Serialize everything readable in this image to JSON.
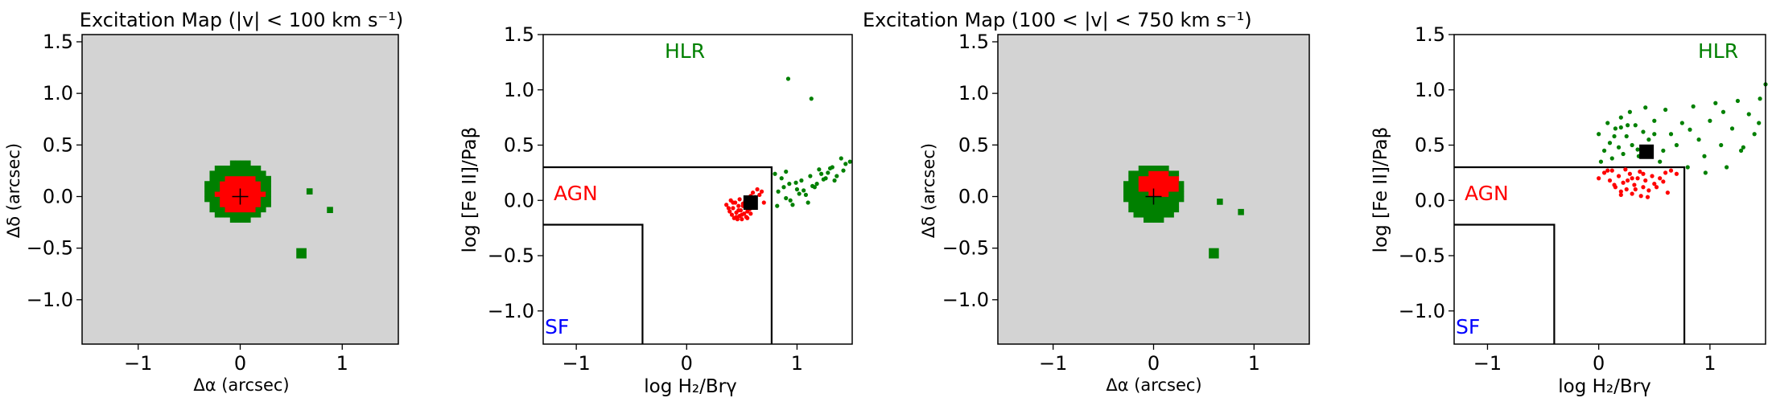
{
  "figure": {
    "panels": [
      {
        "id": "map1",
        "title": "Excitation Map (|v| < 100 km s⁻¹)",
        "xlabel": "Δα (arcsec)",
        "ylabel": "Δδ (arcsec)"
      },
      {
        "id": "diag1",
        "xlabel": "log H₂/Brγ",
        "ylabel": "log [Fe II]/Paβ",
        "regions": {
          "hlr": "HLR",
          "agn": "AGN",
          "sf": "SF"
        }
      },
      {
        "id": "map2",
        "title": "Excitation Map (100 < |v| < 750 km s⁻¹)",
        "xlabel": "Δα (arcsec)",
        "ylabel": "Δδ (arcsec)"
      },
      {
        "id": "diag2",
        "xlabel": "log H₂/Brγ",
        "ylabel": "log [Fe II]/Paβ",
        "regions": {
          "hlr": "HLR",
          "agn": "AGN",
          "sf": "SF"
        }
      }
    ]
  },
  "colors": {
    "map_background": "#d3d3d3",
    "hlr": "#008000",
    "agn": "#ff0000",
    "sf": "#0000ff",
    "marker": "#000000"
  },
  "chart_data": [
    {
      "type": "heatmap",
      "title": "Excitation Map (|v| < 100 km s⁻¹)",
      "xlabel": "Δα (arcsec)",
      "ylabel": "Δδ (arcsec)",
      "xlim": [
        -1.55,
        1.55
      ],
      "ylim": [
        -1.43,
        1.57
      ],
      "xticks": [
        -1,
        0,
        1
      ],
      "yticks": [
        -1.0,
        -0.5,
        0.0,
        0.5,
        1.0,
        1.5
      ],
      "categories": [
        "HLR",
        "AGN"
      ],
      "regions": {
        "HLR_core": {
          "center": [
            -0.02,
            0.05
          ],
          "radius_x": 0.33,
          "radius_y": 0.29
        },
        "AGN_core": {
          "center": [
            0.0,
            0.02
          ],
          "radius_x": 0.23,
          "radius_y": 0.19
        },
        "HLR_islands": [
          [
            0.68,
            0.05
          ],
          [
            0.88,
            -0.13
          ],
          [
            0.6,
            -0.55
          ]
        ]
      },
      "center_marker": [
        0,
        0
      ]
    },
    {
      "type": "scatter",
      "xlabel": "log H₂/Brγ",
      "ylabel": "log [Fe II]/Paβ",
      "xlim": [
        -1.3,
        1.5
      ],
      "ylim": [
        -1.3,
        1.5
      ],
      "xticks": [
        -1,
        0,
        1
      ],
      "yticks": [
        -1.0,
        -0.5,
        0.0,
        0.5,
        1.0,
        1.5
      ],
      "boundaries": {
        "agn_box": {
          "x_max": 0.77,
          "y_min": 0.3
        },
        "sf_box": {
          "x_max": -0.4,
          "y_max": -0.22
        }
      },
      "series": [
        {
          "name": "AGN",
          "x": [
            0.36,
            0.39,
            0.4,
            0.41,
            0.42,
            0.43,
            0.44,
            0.45,
            0.46,
            0.47,
            0.48,
            0.49,
            0.5,
            0.51,
            0.52,
            0.53,
            0.54,
            0.55,
            0.56,
            0.57,
            0.58,
            0.6,
            0.62,
            0.64,
            0.66,
            0.68,
            0.7,
            0.45,
            0.5,
            0.55,
            0.38,
            0.42,
            0.48,
            0.53,
            0.58,
            0.61,
            0.47,
            0.51
          ],
          "y": [
            -0.04,
            -0.1,
            0.0,
            -0.13,
            -0.07,
            -0.16,
            -0.02,
            -0.11,
            -0.17,
            -0.05,
            -0.14,
            -0.09,
            -0.17,
            -0.03,
            -0.12,
            -0.06,
            -0.15,
            -0.1,
            0.02,
            -0.08,
            0.04,
            0.07,
            0.03,
            0.1,
            0.05,
            0.08,
            -0.02,
            -0.15,
            -0.13,
            -0.16,
            -0.07,
            -0.02,
            0.01,
            -0.01,
            -0.12,
            -0.06,
            -0.09,
            -0.05
          ]
        },
        {
          "name": "HLR",
          "x": [
            0.8,
            0.83,
            0.86,
            0.9,
            0.93,
            0.96,
            1.0,
            1.04,
            1.08,
            1.12,
            1.16,
            1.2,
            1.24,
            1.28,
            1.32,
            1.36,
            1.4,
            1.44,
            1.48,
            0.82,
            0.88,
            0.94,
            1.02,
            1.1,
            1.18,
            1.26,
            1.34,
            1.42,
            0.9,
            0.99,
            1.06,
            1.14,
            1.22,
            1.3,
            0.92,
            1.13
          ],
          "y": [
            0.24,
            0.08,
            0.2,
            0.02,
            0.15,
            -0.04,
            0.1,
            0.18,
            0.05,
            0.22,
            0.12,
            0.28,
            0.19,
            0.25,
            0.3,
            0.22,
            0.38,
            0.33,
            0.35,
            -0.05,
            0.12,
            0.0,
            0.06,
            -0.02,
            0.15,
            0.2,
            0.18,
            0.27,
            0.26,
            0.16,
            0.09,
            0.13,
            0.24,
            0.29,
            1.1,
            0.92
          ]
        },
        {
          "name": "marker",
          "x": [
            0.58
          ],
          "y": [
            -0.02
          ]
        }
      ]
    },
    {
      "type": "heatmap",
      "title": "Excitation Map (100 < |v| < 750 km s⁻¹)",
      "xlabel": "Δα (arcsec)",
      "ylabel": "Δδ (arcsec)",
      "xlim": [
        -1.55,
        1.55
      ],
      "ylim": [
        -1.43,
        1.57
      ],
      "xticks": [
        -1,
        0,
        1
      ],
      "yticks": [
        -1.0,
        -0.5,
        0.0,
        0.5,
        1.0,
        1.5
      ],
      "categories": [
        "HLR",
        "AGN"
      ],
      "regions": {
        "HLR_core": {
          "center": [
            0.0,
            0.04
          ],
          "radius_x": 0.3,
          "radius_y": 0.28
        },
        "AGN_core": {
          "center": [
            0.05,
            0.13
          ],
          "radius_x": 0.2,
          "radius_y": 0.12
        },
        "HLR_islands": [
          [
            0.66,
            -0.05
          ],
          [
            0.87,
            -0.15
          ],
          [
            0.6,
            -0.55
          ]
        ]
      },
      "center_marker": [
        0,
        0
      ]
    },
    {
      "type": "scatter",
      "xlabel": "log H₂/Brγ",
      "ylabel": "log [Fe II]/Paβ",
      "xlim": [
        -1.3,
        1.5
      ],
      "ylim": [
        -1.3,
        1.5
      ],
      "xticks": [
        -1,
        0,
        1
      ],
      "yticks": [
        -1.0,
        -0.5,
        0.0,
        0.5,
        1.0,
        1.5
      ],
      "boundaries": {
        "agn_box": {
          "x_max": 0.77,
          "y_min": 0.3
        },
        "sf_box": {
          "x_max": -0.4,
          "y_max": -0.22
        }
      },
      "series": [
        {
          "name": "AGN",
          "x": [
            0.0,
            0.05,
            0.1,
            0.12,
            0.15,
            0.18,
            0.2,
            0.22,
            0.25,
            0.28,
            0.3,
            0.32,
            0.35,
            0.38,
            0.4,
            0.42,
            0.45,
            0.48,
            0.5,
            0.55,
            0.6,
            0.65,
            0.7,
            0.08,
            0.14,
            0.2,
            0.26,
            0.33,
            0.37,
            0.44,
            0.52,
            0.58,
            0.62,
            0.24,
            0.3,
            0.4
          ],
          "y": [
            0.2,
            0.25,
            0.18,
            0.27,
            0.12,
            0.22,
            0.08,
            0.16,
            0.1,
            0.24,
            0.06,
            0.14,
            0.2,
            0.04,
            0.12,
            0.18,
            0.09,
            0.22,
            0.15,
            0.2,
            0.25,
            0.27,
            0.24,
            0.27,
            0.14,
            0.05,
            0.18,
            0.1,
            0.26,
            0.03,
            0.12,
            0.17,
            0.07,
            0.28,
            0.2,
            0.24
          ]
        },
        {
          "name": "HLR",
          "x": [
            0.0,
            0.05,
            0.08,
            0.1,
            0.12,
            0.15,
            0.18,
            0.2,
            0.22,
            0.25,
            0.28,
            0.3,
            0.33,
            0.36,
            0.4,
            0.45,
            0.5,
            0.55,
            0.6,
            0.65,
            0.7,
            0.75,
            0.8,
            0.85,
            0.9,
            0.95,
            1.0,
            1.05,
            1.1,
            1.15,
            1.2,
            1.25,
            1.3,
            1.35,
            1.4,
            1.45,
            1.5,
            0.02,
            0.14,
            0.26,
            0.42,
            0.58,
            0.82,
            0.96,
            1.12,
            1.28,
            1.44,
            0.2,
            0.35,
            0.5
          ],
          "y": [
            0.6,
            0.45,
            0.7,
            0.52,
            0.38,
            0.65,
            0.48,
            0.75,
            0.42,
            0.58,
            0.8,
            0.5,
            0.68,
            0.4,
            0.62,
            0.55,
            0.72,
            0.35,
            0.82,
            0.6,
            0.5,
            0.7,
            0.3,
            0.85,
            0.55,
            0.4,
            0.72,
            0.88,
            0.5,
            0.3,
            0.65,
            0.9,
            0.48,
            0.78,
            0.6,
            0.92,
            1.05,
            0.35,
            0.58,
            0.68,
            0.84,
            0.45,
            0.64,
            0.25,
            0.8,
            0.45,
            0.7,
            0.66,
            0.46,
            0.6
          ]
        },
        {
          "name": "marker",
          "x": [
            0.43
          ],
          "y": [
            0.44
          ]
        }
      ]
    }
  ]
}
